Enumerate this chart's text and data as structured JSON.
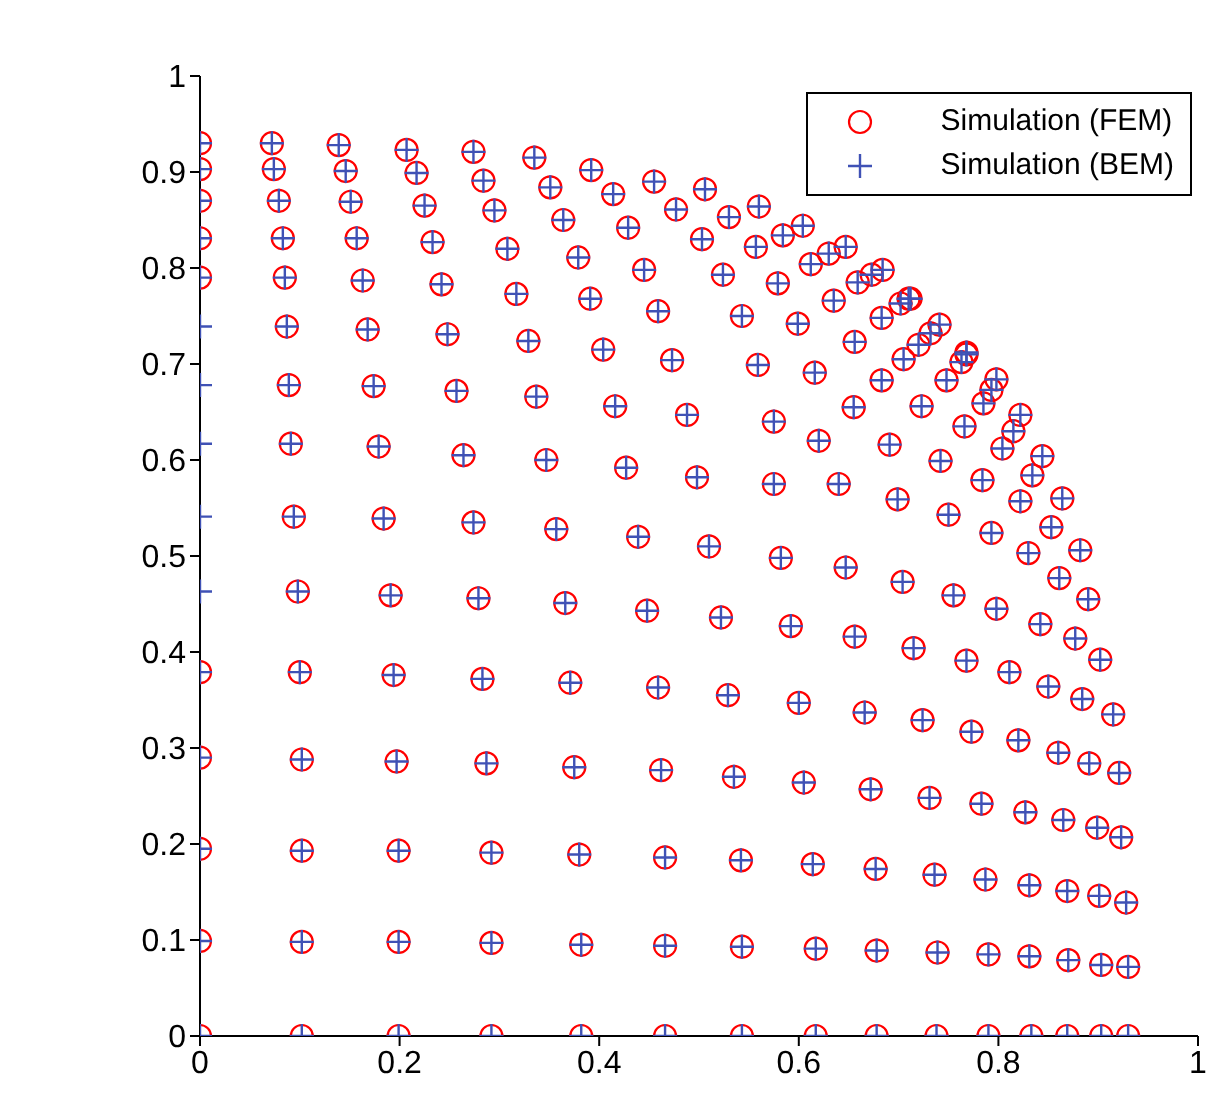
{
  "chart_data": {
    "type": "scatter",
    "xlim": [
      0,
      1
    ],
    "ylim": [
      0,
      1
    ],
    "xticks": [
      0,
      0.2,
      0.4,
      0.6,
      0.8,
      1
    ],
    "yticks": [
      0,
      0.1,
      0.2,
      0.3,
      0.4,
      0.5,
      0.6,
      0.7,
      0.8,
      0.9,
      1
    ],
    "grid": false,
    "legend": "top right",
    "series": [
      {
        "name": "Simulation (FEM)",
        "color": "#ff0000",
        "marker": "circle",
        "x": [
          0,
          0.102,
          0.199,
          0.292,
          0.382,
          0.466,
          0.543,
          0.617,
          0.678,
          0.738,
          0.79,
          0.833,
          0.869,
          0.903,
          0.93,
          0,
          0.102,
          0.199,
          0.292,
          0.382,
          0.466,
          0.543,
          0.617,
          0.678,
          0.739,
          0.79,
          0.831,
          0.87,
          0.903,
          0.93,
          0,
          0.102,
          0.199,
          0.292,
          0.38,
          0.466,
          0.542,
          0.614,
          0.677,
          0.736,
          0.787,
          0.831,
          0.869,
          0.901,
          0.928,
          0,
          0.102,
          0.197,
          0.287,
          0.375,
          0.462,
          0.535,
          0.605,
          0.672,
          0.731,
          0.783,
          0.827,
          0.865,
          0.899,
          0.923,
          0,
          0.1,
          0.194,
          0.283,
          0.371,
          0.459,
          0.529,
          0.6,
          0.666,
          0.724,
          0.773,
          0.82,
          0.86,
          0.891,
          0.921,
          0.098,
          0.191,
          0.279,
          0.366,
          0.448,
          0.522,
          0.592,
          0.656,
          0.715,
          0.768,
          0.811,
          0.85,
          0.884,
          0.915,
          0.094,
          0.184,
          0.274,
          0.357,
          0.439,
          0.51,
          0.582,
          0.647,
          0.704,
          0.755,
          0.798,
          0.842,
          0.877,
          0.902,
          0.091,
          0.179,
          0.264,
          0.347,
          0.427,
          0.498,
          0.575,
          0.64,
          0.699,
          0.75,
          0.793,
          0.83,
          0.861,
          0.89,
          0.089,
          0.174,
          0.257,
          0.337,
          0.416,
          0.488,
          0.575,
          0.62,
          0.691,
          0.742,
          0.784,
          0.822,
          0.853,
          0.882,
          0.087,
          0.168,
          0.248,
          0.329,
          0.404,
          0.473,
          0.559,
          0.616,
          0.655,
          0.723,
          0.766,
          0.804,
          0.834,
          0.864,
          0,
          0.085,
          0.163,
          0.242,
          0.317,
          0.391,
          0.459,
          0.543,
          0.599,
          0.656,
          0.683,
          0.748,
          0.785,
          0.815,
          0.844,
          0,
          0.083,
          0.157,
          0.233,
          0.308,
          0.379,
          0.445,
          0.524,
          0.579,
          0.635,
          0.683,
          0.705,
          0.763,
          0.793,
          0.822,
          0,
          0.079,
          0.151,
          0.225,
          0.295,
          0.364,
          0.429,
          0.503,
          0.557,
          0.612,
          0.659,
          0.702,
          0.72,
          0.768,
          0.798,
          0,
          0.074,
          0.146,
          0.217,
          0.284,
          0.351,
          0.414,
          0.477,
          0.53,
          0.584,
          0.63,
          0.673,
          0.71,
          0.732,
          0.768,
          0,
          0.072,
          0.139,
          0.207,
          0.274,
          0.335,
          0.392,
          0.455,
          0.506,
          0.56,
          0.604,
          0.647,
          0.684,
          0.712,
          0.741
        ],
        "values": [
          0,
          0,
          0,
          0,
          0,
          0,
          0,
          0,
          0,
          0,
          0,
          0,
          0,
          0,
          0,
          0.099,
          0.098,
          0.098,
          0.097,
          0.095,
          0.094,
          0.093,
          0.091,
          0.089,
          0.087,
          0.085,
          0.083,
          0.079,
          0.074,
          0.072,
          0.195,
          0.193,
          0.193,
          0.191,
          0.189,
          0.186,
          0.183,
          0.179,
          0.174,
          0.168,
          0.163,
          0.157,
          0.151,
          0.146,
          0.139,
          0.29,
          0.288,
          0.286,
          0.284,
          0.28,
          0.277,
          0.27,
          0.264,
          0.257,
          0.248,
          0.242,
          0.233,
          0.225,
          0.217,
          0.207,
          0.379,
          0.379,
          0.376,
          0.372,
          0.368,
          0.363,
          0.355,
          0.347,
          0.337,
          0.329,
          0.317,
          0.308,
          0.295,
          0.284,
          0.274,
          0.463,
          0.459,
          0.456,
          0.451,
          0.443,
          0.436,
          0.427,
          0.416,
          0.404,
          0.391,
          0.379,
          0.364,
          0.351,
          0.335,
          0.541,
          0.539,
          0.535,
          0.528,
          0.52,
          0.51,
          0.498,
          0.488,
          0.473,
          0.459,
          0.445,
          0.429,
          0.414,
          0.392,
          0.617,
          0.614,
          0.605,
          0.6,
          0.592,
          0.582,
          0.575,
          0.575,
          0.559,
          0.543,
          0.524,
          0.503,
          0.477,
          0.455,
          0.678,
          0.677,
          0.672,
          0.666,
          0.656,
          0.647,
          0.64,
          0.62,
          0.616,
          0.599,
          0.579,
          0.557,
          0.53,
          0.506,
          0.739,
          0.736,
          0.731,
          0.724,
          0.715,
          0.704,
          0.699,
          0.691,
          0.655,
          0.656,
          0.635,
          0.612,
          0.584,
          0.56,
          0.79,
          0.79,
          0.787,
          0.783,
          0.773,
          0.768,
          0.755,
          0.75,
          0.742,
          0.723,
          0.683,
          0.683,
          0.659,
          0.63,
          0.604,
          0.831,
          0.831,
          0.831,
          0.827,
          0.82,
          0.811,
          0.798,
          0.793,
          0.784,
          0.766,
          0.748,
          0.705,
          0.702,
          0.673,
          0.647,
          0.87,
          0.87,
          0.869,
          0.865,
          0.86,
          0.85,
          0.842,
          0.83,
          0.822,
          0.804,
          0.785,
          0.763,
          0.72,
          0.71,
          0.684,
          0.903,
          0.903,
          0.901,
          0.899,
          0.891,
          0.884,
          0.877,
          0.861,
          0.853,
          0.834,
          0.815,
          0.793,
          0.768,
          0.732,
          0.712,
          0.93,
          0.93,
          0.928,
          0.923,
          0.921,
          0.915,
          0.902,
          0.89,
          0.882,
          0.864,
          0.844,
          0.822,
          0.798,
          0.768,
          0.741
        ]
      },
      {
        "name": "Simulation (BEM)",
        "color": "#3f51b5",
        "marker": "cross",
        "x": [
          0,
          0.102,
          0.199,
          0.292,
          0.382,
          0.466,
          0.543,
          0.617,
          0.678,
          0.738,
          0.79,
          0.833,
          0.869,
          0.903,
          0.93,
          0,
          0.102,
          0.199,
          0.292,
          0.382,
          0.466,
          0.543,
          0.617,
          0.678,
          0.739,
          0.79,
          0.831,
          0.87,
          0.903,
          0.93,
          0,
          0.102,
          0.199,
          0.292,
          0.38,
          0.466,
          0.542,
          0.614,
          0.677,
          0.736,
          0.787,
          0.831,
          0.869,
          0.901,
          0.928,
          0,
          0.102,
          0.197,
          0.287,
          0.375,
          0.462,
          0.535,
          0.605,
          0.672,
          0.731,
          0.783,
          0.827,
          0.865,
          0.899,
          0.923,
          0,
          0.1,
          0.194,
          0.283,
          0.371,
          0.459,
          0.529,
          0.6,
          0.666,
          0.724,
          0.773,
          0.82,
          0.86,
          0.891,
          0.921,
          0,
          0.098,
          0.191,
          0.279,
          0.366,
          0.448,
          0.522,
          0.592,
          0.656,
          0.715,
          0.768,
          0.811,
          0.85,
          0.884,
          0.915,
          0,
          0.094,
          0.184,
          0.274,
          0.357,
          0.439,
          0.51,
          0.582,
          0.647,
          0.704,
          0.755,
          0.798,
          0.842,
          0.877,
          0.902,
          0,
          0.091,
          0.179,
          0.264,
          0.347,
          0.427,
          0.498,
          0.575,
          0.64,
          0.699,
          0.75,
          0.793,
          0.83,
          0.861,
          0.89,
          0,
          0.089,
          0.174,
          0.257,
          0.337,
          0.416,
          0.488,
          0.575,
          0.62,
          0.691,
          0.742,
          0.784,
          0.822,
          0.853,
          0.882,
          0,
          0.087,
          0.168,
          0.248,
          0.329,
          0.404,
          0.473,
          0.559,
          0.616,
          0.655,
          0.723,
          0.766,
          0.804,
          0.834,
          0.864,
          0,
          0.085,
          0.163,
          0.242,
          0.317,
          0.391,
          0.459,
          0.543,
          0.599,
          0.656,
          0.683,
          0.748,
          0.785,
          0.815,
          0.844,
          0,
          0.083,
          0.157,
          0.233,
          0.308,
          0.379,
          0.445,
          0.524,
          0.579,
          0.635,
          0.683,
          0.705,
          0.763,
          0.793,
          0.822,
          0,
          0.079,
          0.151,
          0.225,
          0.295,
          0.364,
          0.429,
          0.503,
          0.557,
          0.612,
          0.659,
          0.702,
          0.72,
          0.768,
          0.798,
          0,
          0.074,
          0.146,
          0.217,
          0.284,
          0.351,
          0.414,
          0.477,
          0.53,
          0.584,
          0.63,
          0.673,
          0.71,
          0.732,
          0.768,
          0,
          0.072,
          0.139,
          0.207,
          0.274,
          0.335,
          0.392,
          0.455,
          0.506,
          0.56,
          0.604,
          0.647,
          0.684,
          0.712,
          0.741
        ],
        "values": [
          0,
          0,
          0,
          0,
          0,
          0,
          0,
          0,
          0,
          0,
          0,
          0,
          0,
          0,
          0,
          0.099,
          0.098,
          0.098,
          0.097,
          0.095,
          0.094,
          0.093,
          0.091,
          0.089,
          0.087,
          0.085,
          0.083,
          0.079,
          0.074,
          0.072,
          0.195,
          0.193,
          0.193,
          0.191,
          0.189,
          0.186,
          0.183,
          0.179,
          0.174,
          0.168,
          0.163,
          0.157,
          0.151,
          0.146,
          0.139,
          0.29,
          0.288,
          0.286,
          0.284,
          0.28,
          0.277,
          0.27,
          0.264,
          0.257,
          0.248,
          0.242,
          0.233,
          0.225,
          0.217,
          0.207,
          0.379,
          0.379,
          0.376,
          0.372,
          0.368,
          0.363,
          0.355,
          0.347,
          0.337,
          0.329,
          0.317,
          0.308,
          0.295,
          0.284,
          0.274,
          0.463,
          0.463,
          0.459,
          0.456,
          0.451,
          0.443,
          0.436,
          0.427,
          0.416,
          0.404,
          0.391,
          0.379,
          0.364,
          0.351,
          0.335,
          0.541,
          0.541,
          0.539,
          0.535,
          0.528,
          0.52,
          0.51,
          0.498,
          0.488,
          0.473,
          0.459,
          0.445,
          0.429,
          0.414,
          0.392,
          0.617,
          0.617,
          0.614,
          0.605,
          0.6,
          0.592,
          0.582,
          0.575,
          0.575,
          0.559,
          0.543,
          0.524,
          0.503,
          0.477,
          0.455,
          0.678,
          0.678,
          0.677,
          0.672,
          0.666,
          0.656,
          0.647,
          0.64,
          0.62,
          0.616,
          0.599,
          0.579,
          0.557,
          0.53,
          0.506,
          0.739,
          0.739,
          0.736,
          0.731,
          0.724,
          0.715,
          0.704,
          0.699,
          0.691,
          0.655,
          0.656,
          0.635,
          0.612,
          0.584,
          0.56,
          0.79,
          0.79,
          0.787,
          0.783,
          0.773,
          0.768,
          0.755,
          0.75,
          0.742,
          0.723,
          0.683,
          0.683,
          0.659,
          0.63,
          0.604,
          0.831,
          0.831,
          0.831,
          0.827,
          0.82,
          0.811,
          0.798,
          0.793,
          0.784,
          0.766,
          0.748,
          0.705,
          0.702,
          0.673,
          0.647,
          0.87,
          0.87,
          0.869,
          0.865,
          0.86,
          0.85,
          0.842,
          0.83,
          0.822,
          0.804,
          0.785,
          0.763,
          0.72,
          0.71,
          0.684,
          0.903,
          0.903,
          0.901,
          0.899,
          0.891,
          0.884,
          0.877,
          0.861,
          0.853,
          0.834,
          0.815,
          0.793,
          0.768,
          0.732,
          0.712,
          0.93,
          0.93,
          0.928,
          0.923,
          0.921,
          0.915,
          0.902,
          0.89,
          0.882,
          0.864,
          0.844,
          0.822,
          0.798,
          0.768,
          0.741
        ]
      }
    ]
  }
}
